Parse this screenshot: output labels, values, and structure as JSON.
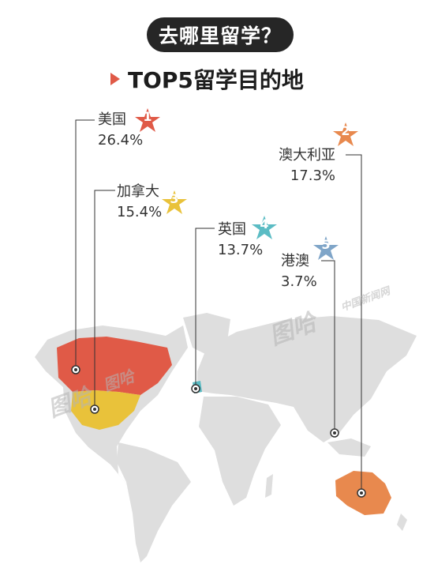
{
  "header": {
    "title": "去哪里留学？",
    "subtitle": "TOP5留学目的地"
  },
  "watermarks": [
    "图哈",
    "中国新闻网",
    "图哈",
    "图哈"
  ],
  "colors": {
    "land": "#dedede",
    "rank1": "#e05a47",
    "rank2": "#e8894e",
    "rank3": "#e9c23a",
    "rank4": "#5bbcc4",
    "rank5": "#7fa5c8",
    "leader": "#333333"
  },
  "chart_data": {
    "type": "map",
    "title": "TOP5留学目的地",
    "series": [
      {
        "rank": "1",
        "name": "美国",
        "value": "26.4%",
        "color": "#e05a47"
      },
      {
        "rank": "2",
        "name": "澳大利亚",
        "value": "17.3%",
        "color": "#e8894e"
      },
      {
        "rank": "3",
        "name": "加拿大",
        "value": "15.4%",
        "color": "#e9c23a"
      },
      {
        "rank": "4",
        "name": "英国",
        "value": "13.7%",
        "color": "#5bbcc4"
      },
      {
        "rank": "5",
        "name": "港澳",
        "value": "3.7%",
        "color": "#7fa5c8"
      }
    ]
  }
}
